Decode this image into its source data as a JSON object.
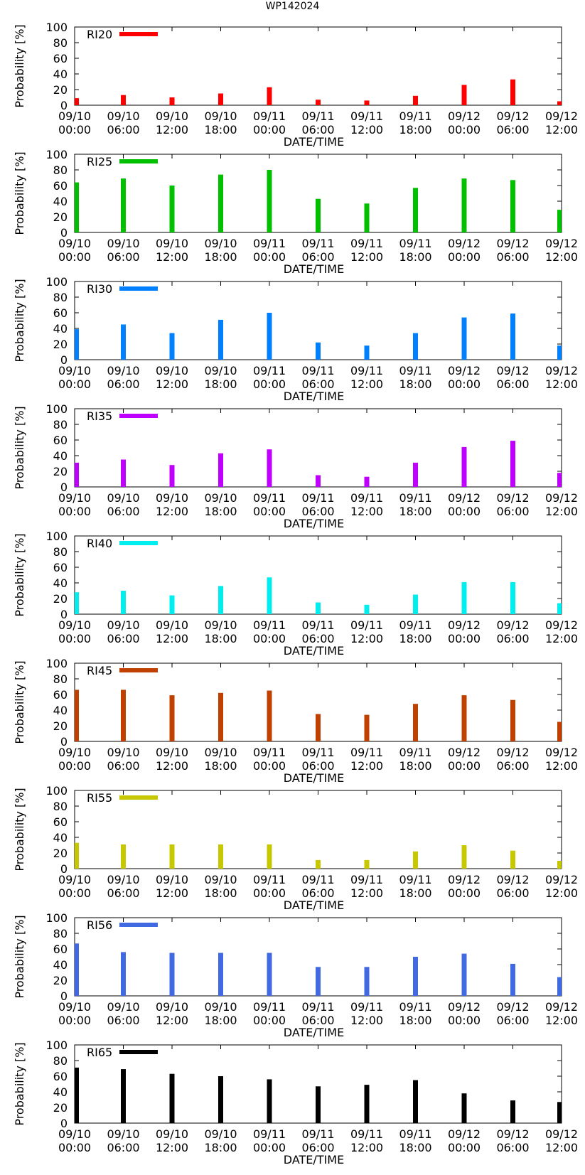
{
  "page_title": "WP142024",
  "chart_data": {
    "type": "bar",
    "title": "WP142024",
    "xlabel": "DATE/TIME",
    "ylabel": "Probability [%]",
    "ylim": [
      0,
      100
    ],
    "yticks": [
      0,
      20,
      40,
      60,
      80,
      100
    ],
    "xtick_labels": [
      [
        "09/10",
        "00:00"
      ],
      [
        "09/10",
        "06:00"
      ],
      [
        "09/10",
        "12:00"
      ],
      [
        "09/10",
        "18:00"
      ],
      [
        "09/11",
        "00:00"
      ],
      [
        "09/11",
        "06:00"
      ],
      [
        "09/11",
        "12:00"
      ],
      [
        "09/11",
        "18:00"
      ],
      [
        "09/12",
        "00:00"
      ],
      [
        "09/12",
        "06:00"
      ],
      [
        "09/12",
        "12:00"
      ]
    ],
    "series": [
      {
        "name": "RI20",
        "color": "#ff0000",
        "values": [
          9,
          13,
          10,
          15,
          23,
          7,
          6,
          12,
          26,
          33,
          5
        ]
      },
      {
        "name": "RI25",
        "color": "#00c000",
        "values": [
          64,
          69,
          60,
          74,
          80,
          43,
          37,
          57,
          69,
          67,
          29
        ]
      },
      {
        "name": "RI30",
        "color": "#0080ff",
        "values": [
          39,
          45,
          34,
          51,
          60,
          22,
          18,
          34,
          54,
          59,
          18
        ]
      },
      {
        "name": "RI35",
        "color": "#c000ff",
        "values": [
          31,
          35,
          28,
          43,
          48,
          15,
          13,
          31,
          51,
          59,
          18
        ]
      },
      {
        "name": "RI40",
        "color": "#00eeee",
        "values": [
          28,
          30,
          24,
          36,
          47,
          15,
          12,
          25,
          41,
          41,
          14
        ]
      },
      {
        "name": "RI45",
        "color": "#c04000",
        "values": [
          66,
          66,
          59,
          62,
          65,
          35,
          34,
          48,
          59,
          53,
          25
        ]
      },
      {
        "name": "RI55",
        "color": "#c8c800",
        "values": [
          33,
          31,
          31,
          31,
          31,
          11,
          11,
          22,
          30,
          23,
          10
        ]
      },
      {
        "name": "RI56",
        "color": "#4169e1",
        "values": [
          67,
          56,
          55,
          55,
          55,
          37,
          37,
          50,
          54,
          41,
          24
        ]
      },
      {
        "name": "RI65",
        "color": "#000000",
        "values": [
          71,
          69,
          63,
          60,
          56,
          47,
          49,
          55,
          38,
          29,
          27
        ]
      }
    ]
  }
}
